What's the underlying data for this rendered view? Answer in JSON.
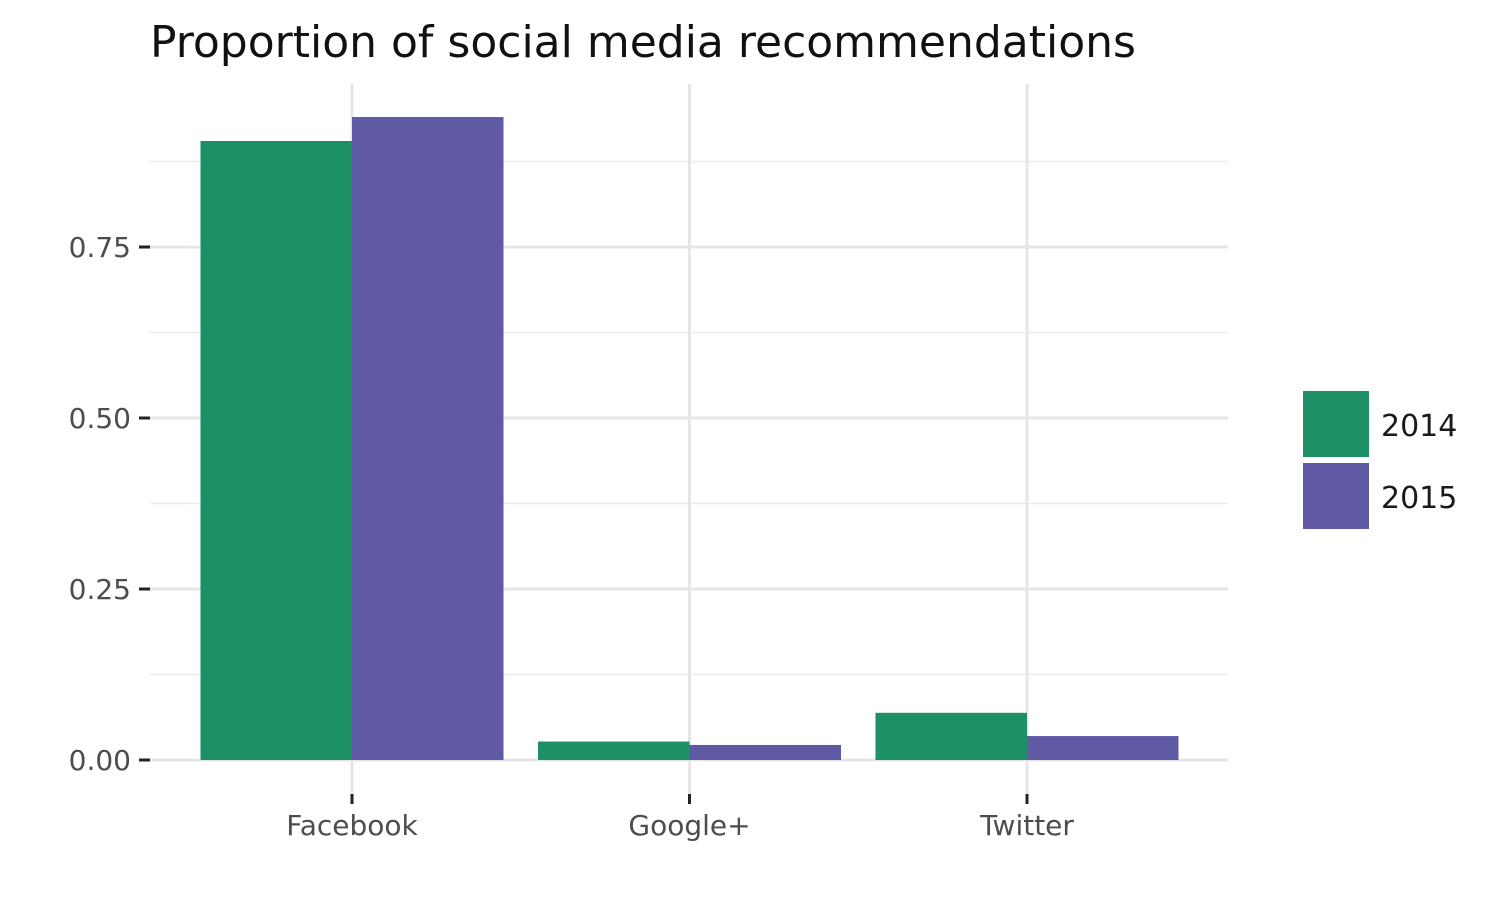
{
  "chart_data": {
    "type": "bar",
    "title": "Proportion of social media recommendations",
    "xlabel": "",
    "ylabel": "",
    "categories": [
      "Facebook",
      "Google+",
      "Twitter"
    ],
    "series": [
      {
        "name": "2014",
        "values": [
          0.905,
          0.027,
          0.069
        ],
        "color": "#1e9065"
      },
      {
        "name": "2015",
        "values": [
          0.94,
          0.022,
          0.035
        ],
        "color": "#6059a3"
      }
    ],
    "ylim": [
      -0.02,
      0.98
    ],
    "yticks": [
      0,
      0.25,
      0.5,
      0.75
    ],
    "ytick_labels": [
      "0.00",
      "0.25",
      "0.50",
      "0.75"
    ],
    "grid": true,
    "legend_position": "right"
  }
}
